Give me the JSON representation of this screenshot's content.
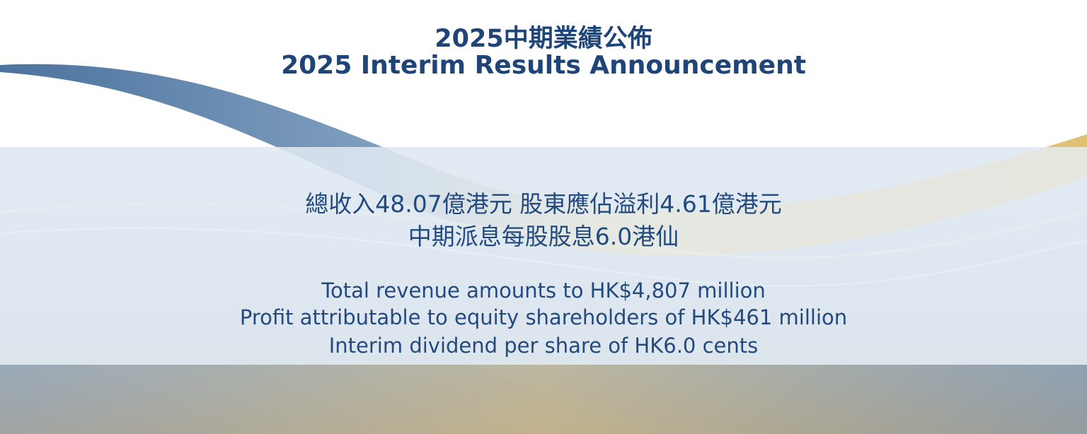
{
  "title": {
    "chinese": "2025中期業績公佈",
    "english": "2025 Interim Results Announcement"
  },
  "highlights_chinese": [
    "總收入48.07億港元 股東應佔溢利4.61億港元",
    "中期派息每股股息6.0港仙"
  ],
  "highlights_english": [
    "Total revenue amounts to HK$4,807 million",
    "Profit attributable to equity shareholders of HK$461 million",
    "Interim dividend per share of HK6.0 cents"
  ],
  "colors": {
    "title": "#1f4478",
    "body_text": "#234a7e",
    "panel": "#e8eff7",
    "wave_gold": "#d9b55a",
    "wave_blue": "#2c5a8c"
  }
}
